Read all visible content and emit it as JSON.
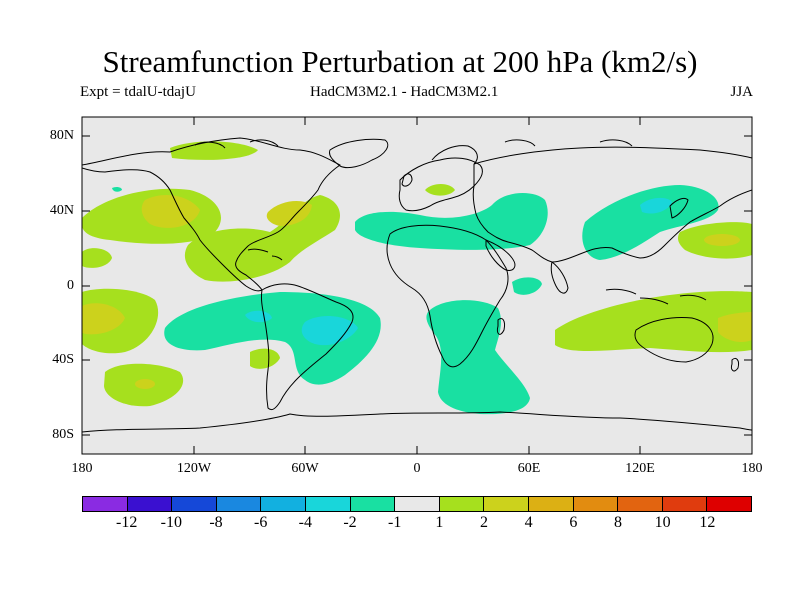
{
  "title": "Streamfunction Perturbation at 200 hPa (km2/s)",
  "experiment": "Expt = tdalU-tdajU",
  "models": "HadCM3M2.1 - HadCM3M2.1",
  "season": "JJA",
  "lat_labels": [
    "80N",
    "40N",
    "0",
    "40S",
    "80S"
  ],
  "lon_labels": [
    "180",
    "120W",
    "60W",
    "0",
    "60E",
    "120E",
    "180"
  ],
  "colorbar": {
    "levels": [
      "-12",
      "-10",
      "-8",
      "-6",
      "-4",
      "-2",
      "-1",
      "1",
      "2",
      "4",
      "6",
      "8",
      "10",
      "12"
    ],
    "colors": [
      "#8a2be2",
      "#3a10d0",
      "#1548d8",
      "#1a88e0",
      "#12b0e0",
      "#19d6da",
      "#19e0a2",
      "#e8e8e8",
      "#a6e01e",
      "#ccd21c",
      "#dcb014",
      "#e28c10",
      "#e26410",
      "#e03c0e",
      "#de0000"
    ]
  },
  "colors": {
    "background_field": "#e8e8e8",
    "green_1_2": "#a6e01e",
    "yellow_2_4": "#ccd21c",
    "teal_m2_m1": "#19e0a2",
    "cyan_m4_m2": "#19d6da"
  }
}
